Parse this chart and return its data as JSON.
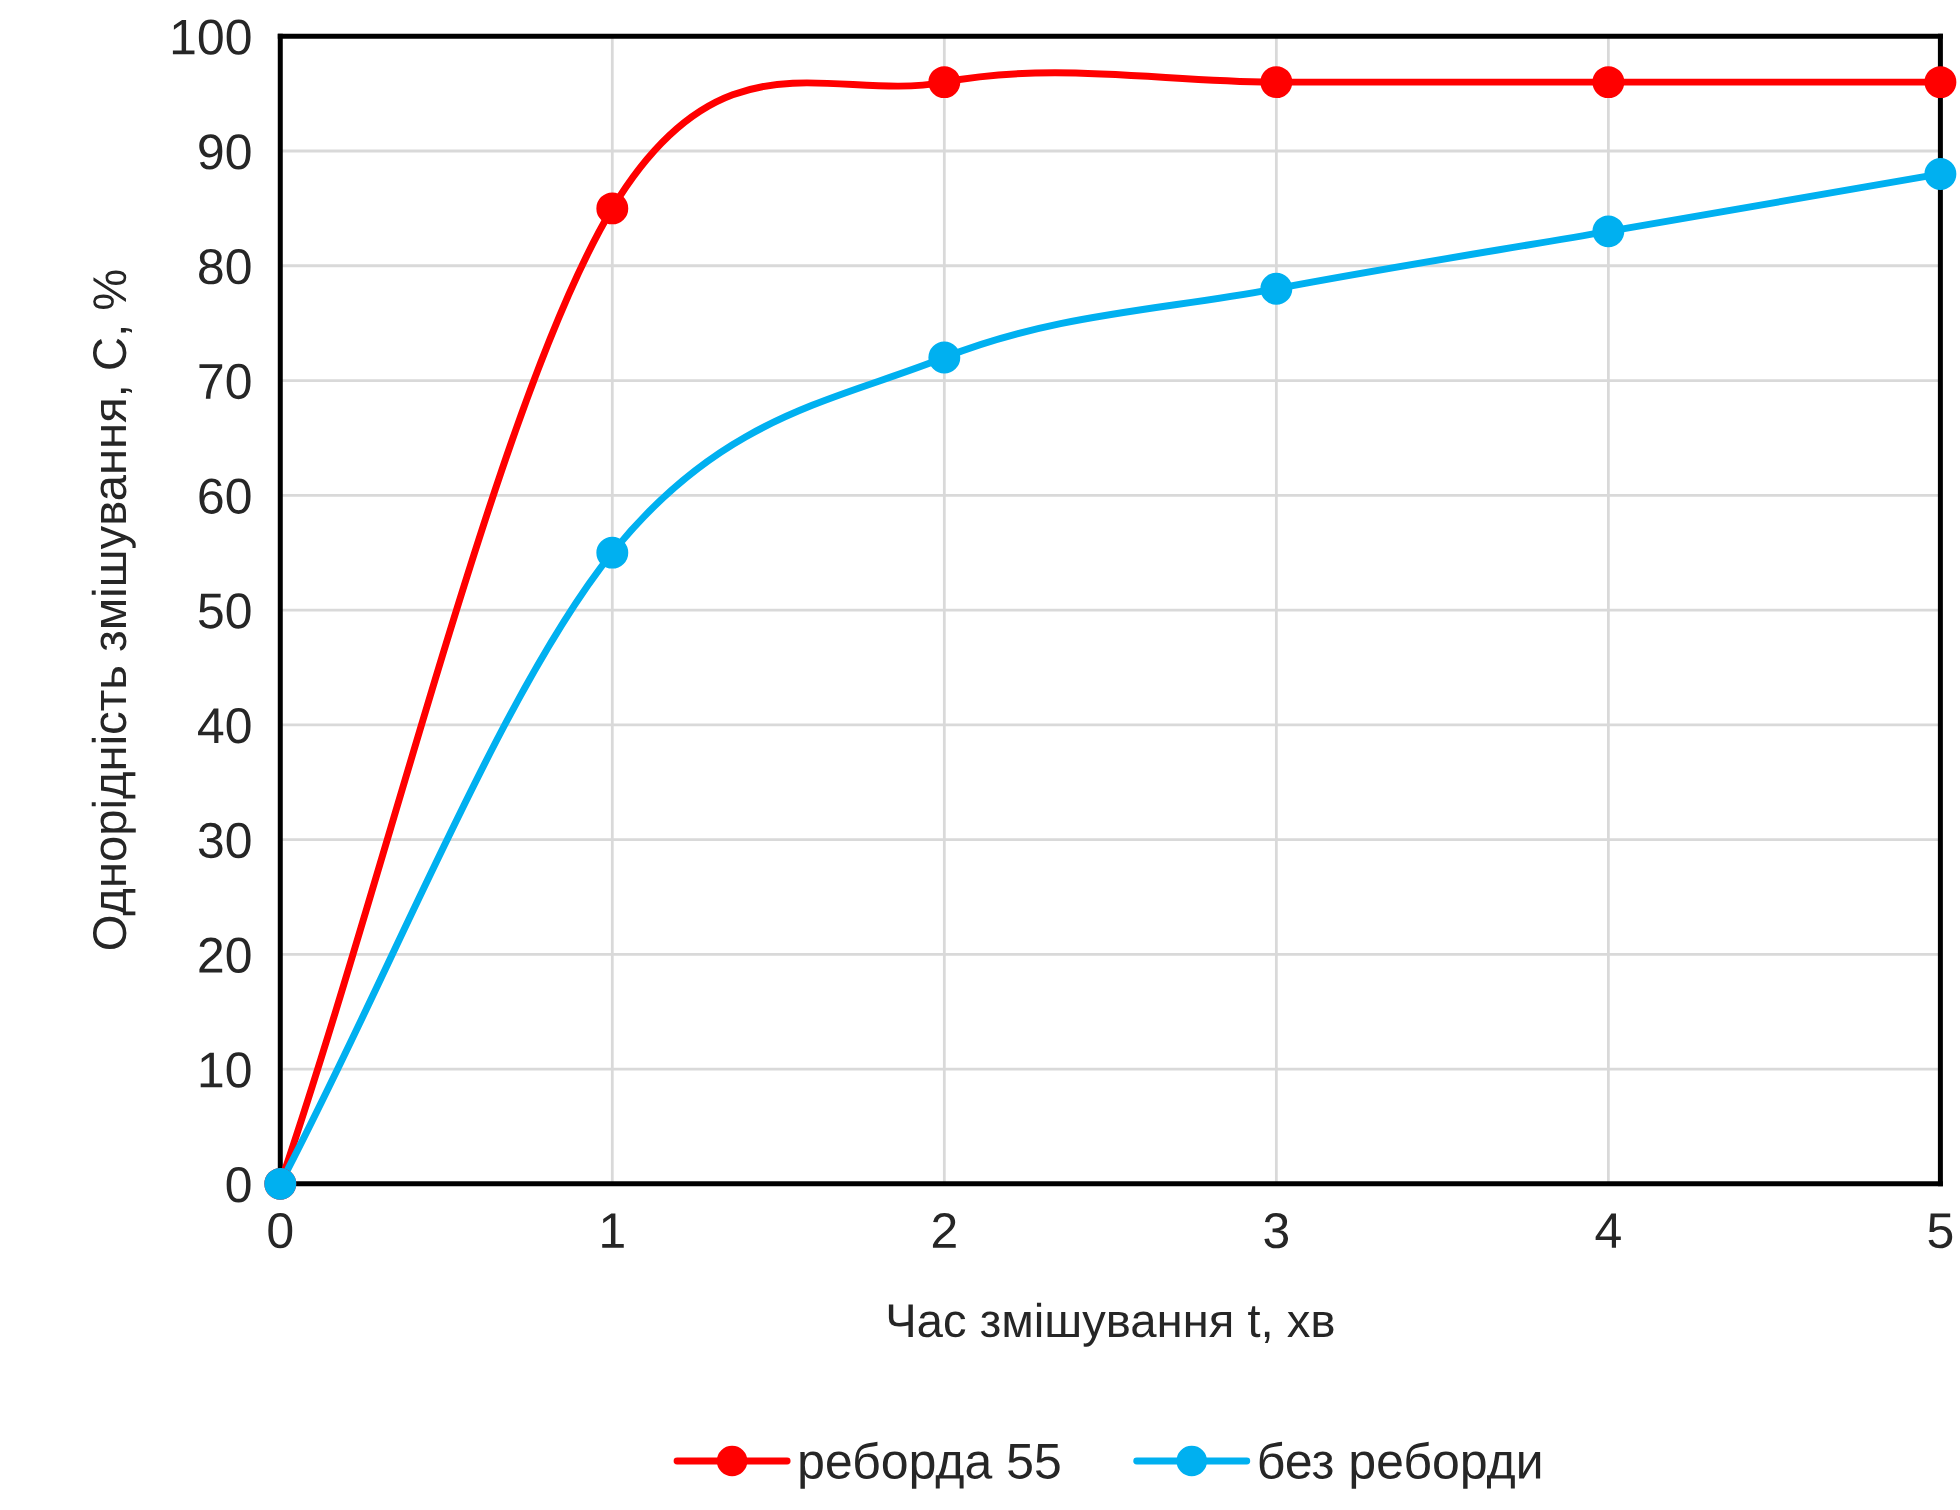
{
  "chart_data": {
    "type": "line",
    "xlabel": "Час змішування t, хв",
    "ylabel": "Однорідність змішування, С, %",
    "x": [
      0,
      1,
      2,
      3,
      4,
      5
    ],
    "series": [
      {
        "name": "реборда 55",
        "color": "#ff0000",
        "values": [
          0,
          85,
          96,
          96,
          96,
          96
        ]
      },
      {
        "name": "без реборди",
        "color": "#00b0f0",
        "values": [
          0,
          55,
          72,
          78,
          83,
          88
        ]
      }
    ],
    "xlim": [
      0,
      5
    ],
    "xticks": [
      0,
      1,
      2,
      3,
      4,
      5
    ],
    "ylim": [
      0,
      100
    ],
    "yticks": [
      0,
      10,
      20,
      30,
      40,
      50,
      60,
      70,
      80,
      90,
      100
    ],
    "grid": true,
    "legend": "bottom",
    "marker": "circle",
    "line_style": "solid"
  }
}
